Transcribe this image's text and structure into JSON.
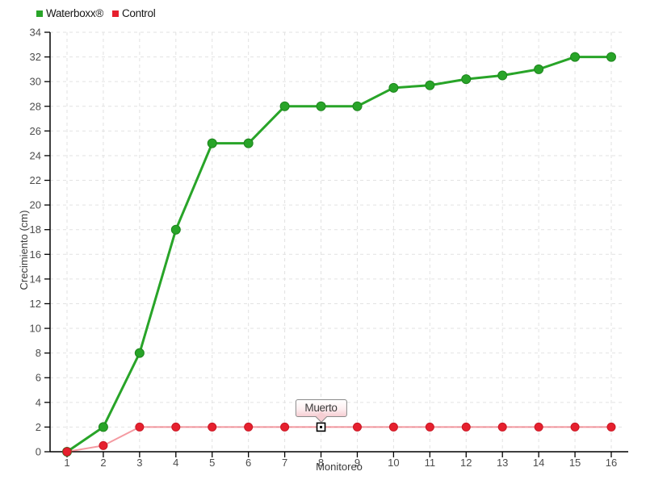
{
  "legend": {
    "items": [
      {
        "label": "Waterboxx®",
        "color": "#28a428"
      },
      {
        "label": "Control",
        "color": "#e6202e"
      }
    ]
  },
  "tooltip": {
    "text": "Muerto"
  },
  "chart_data": {
    "type": "line",
    "x": [
      1,
      2,
      3,
      4,
      5,
      6,
      7,
      8,
      9,
      10,
      11,
      12,
      13,
      14,
      15,
      16
    ],
    "series": [
      {
        "name": "Waterboxx®",
        "color": "#28a428",
        "marker_stroke": "#1d861d",
        "line_width": 3,
        "line_opacity": 1,
        "marker_radius": 5.5,
        "values": [
          0,
          2,
          8,
          18,
          25,
          25,
          28,
          28,
          28,
          29.5,
          29.7,
          30.2,
          30.5,
          31,
          32,
          32
        ]
      },
      {
        "name": "Control",
        "color": "#e6202e",
        "marker_stroke": "#c91724",
        "line_width": 2,
        "line_opacity": 0.45,
        "marker_radius": 5,
        "values": [
          0,
          0.5,
          2,
          2,
          2,
          2,
          2,
          2,
          2,
          2,
          2,
          2,
          2,
          2,
          2,
          2
        ]
      }
    ],
    "title": "",
    "xlabel": "Monitoreo",
    "ylabel": "Crecimiento (cm)",
    "ylim": [
      0,
      34
    ],
    "y_tick_step": 2,
    "x_ticks": [
      1,
      2,
      3,
      4,
      5,
      6,
      7,
      8,
      9,
      10,
      11,
      12,
      13,
      14,
      15,
      16
    ],
    "grid": "dashed",
    "grid_color": "#e2e2e2",
    "axis_color": "#000000",
    "tick_label_color": "#4d4d4d",
    "axis_title_color": "#3a3a3a",
    "legend_position": "top-left",
    "annotation": {
      "text": "Muerto",
      "series": "Control",
      "x": 8,
      "y": 2,
      "marker": "open-square"
    }
  }
}
